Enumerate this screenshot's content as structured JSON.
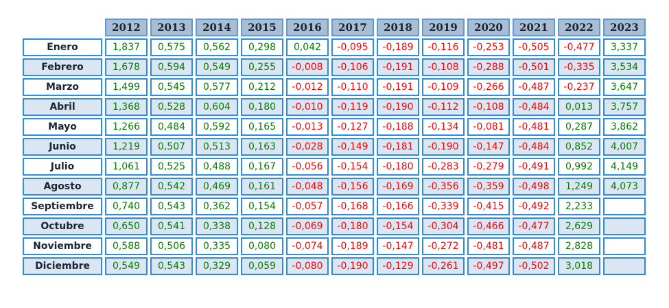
{
  "chart_data": {
    "type": "table",
    "columns": [
      "2012",
      "2013",
      "2014",
      "2015",
      "2016",
      "2017",
      "2018",
      "2019",
      "2020",
      "2021",
      "2022",
      "2023"
    ],
    "rows": [
      {
        "label": "Enero",
        "values": [
          "1,837",
          "0,575",
          "0,562",
          "0,298",
          "0,042",
          "-0,095",
          "-0,189",
          "-0,116",
          "-0,253",
          "-0,505",
          "-0,477",
          "3,337"
        ]
      },
      {
        "label": "Febrero",
        "values": [
          "1,678",
          "0,594",
          "0,549",
          "0,255",
          "-0,008",
          "-0,106",
          "-0,191",
          "-0,108",
          "-0,288",
          "-0,501",
          "-0,335",
          "3,534"
        ]
      },
      {
        "label": "Marzo",
        "values": [
          "1,499",
          "0,545",
          "0,577",
          "0,212",
          "-0,012",
          "-0,110",
          "-0,191",
          "-0,109",
          "-0,266",
          "-0,487",
          "-0,237",
          "3,647"
        ]
      },
      {
        "label": "Abril",
        "values": [
          "1,368",
          "0,528",
          "0,604",
          "0,180",
          "-0,010",
          "-0,119",
          "-0,190",
          "-0,112",
          "-0,108",
          "-0,484",
          "0,013",
          "3,757"
        ]
      },
      {
        "label": "Mayo",
        "values": [
          "1,266",
          "0,484",
          "0,592",
          "0,165",
          "-0,013",
          "-0,127",
          "-0,188",
          "-0,134",
          "-0,081",
          "-0,481",
          "0,287",
          "3,862"
        ]
      },
      {
        "label": "Junio",
        "values": [
          "1,219",
          "0,507",
          "0,513",
          "0,163",
          "-0,028",
          "-0,149",
          "-0,181",
          "-0,190",
          "-0,147",
          "-0,484",
          "0,852",
          "4,007"
        ]
      },
      {
        "label": "Julio",
        "values": [
          "1,061",
          "0,525",
          "0,488",
          "0,167",
          "-0,056",
          "-0,154",
          "-0,180",
          "-0,283",
          "-0,279",
          "-0,491",
          "0,992",
          "4,149"
        ]
      },
      {
        "label": "Agosto",
        "values": [
          "0,877",
          "0,542",
          "0,469",
          "0,161",
          "-0,048",
          "-0,156",
          "-0,169",
          "-0,356",
          "-0,359",
          "-0,498",
          "1,249",
          "4,073"
        ]
      },
      {
        "label": "Septiembre",
        "values": [
          "0,740",
          "0,543",
          "0,362",
          "0,154",
          "-0,057",
          "-0,168",
          "-0,166",
          "-0,339",
          "-0,415",
          "-0,492",
          "2,233",
          ""
        ]
      },
      {
        "label": "Octubre",
        "values": [
          "0,650",
          "0,541",
          "0,338",
          "0,128",
          "-0,069",
          "-0,180",
          "-0,154",
          "-0,304",
          "-0,466",
          "-0,477",
          "2,629",
          ""
        ]
      },
      {
        "label": "Noviembre",
        "values": [
          "0,588",
          "0,506",
          "0,335",
          "0,080",
          "-0,074",
          "-0,189",
          "-0,147",
          "-0,272",
          "-0,481",
          "-0,487",
          "2,828",
          ""
        ]
      },
      {
        "label": "Diciembre",
        "values": [
          "0,549",
          "0,543",
          "0,329",
          "0,059",
          "-0,080",
          "-0,190",
          "-0,129",
          "-0,261",
          "-0,497",
          "-0,502",
          "3,018",
          ""
        ]
      }
    ]
  },
  "colors": {
    "cell_border": "#2b8ce6",
    "header_border": "#5b9bd5",
    "header_bg": "#a9bdd5",
    "header_text": "#1b2433",
    "alt_row_bg": "#dce5f2",
    "row_bg": "#ffffff",
    "positive_value": "#008000",
    "negative_value": "#ff0000"
  }
}
